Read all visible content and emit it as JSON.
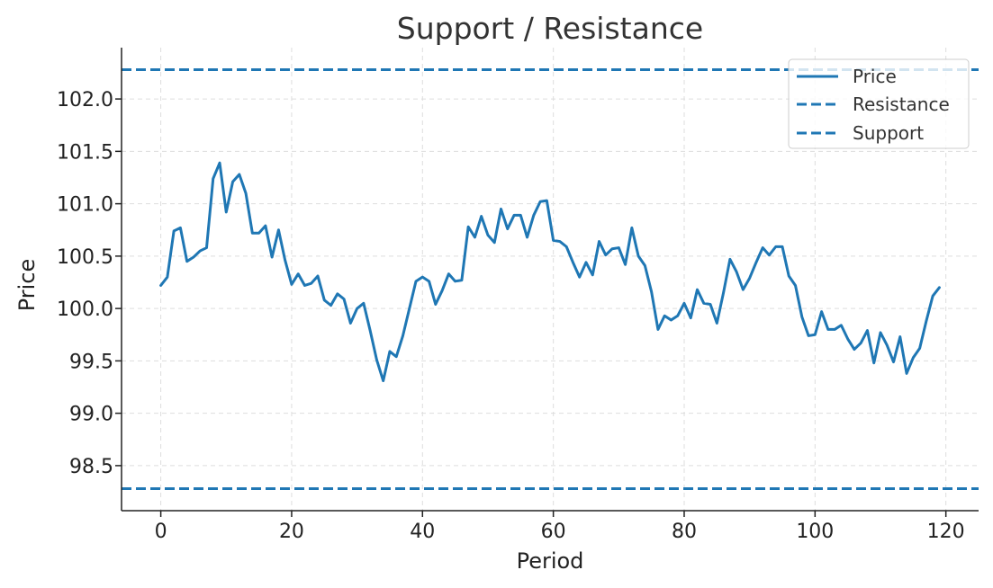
{
  "chart_data": {
    "type": "line",
    "title": "Support / Resistance",
    "xlabel": "Period",
    "ylabel": "Price",
    "xlim": [
      -6,
      125
    ],
    "ylim": [
      98.07,
      102.49
    ],
    "xticks": [
      0,
      20,
      40,
      60,
      80,
      100,
      120
    ],
    "xtick_labels": [
      "0",
      "20",
      "40",
      "60",
      "80",
      "100",
      "120"
    ],
    "yticks": [
      98.5,
      99.0,
      99.5,
      100.0,
      100.5,
      101.0,
      101.5,
      102.0
    ],
    "ytick_labels": [
      "98.5",
      "99.0",
      "99.5",
      "100.0",
      "100.5",
      "101.0",
      "101.5",
      "102.0"
    ],
    "grid": true,
    "legend_position": "top-right",
    "color": "#1f77b4",
    "series": [
      {
        "name": "Price",
        "style": "solid",
        "x": [
          0,
          1,
          2,
          3,
          4,
          5,
          6,
          7,
          8,
          9,
          10,
          11,
          12,
          13,
          14,
          15,
          16,
          17,
          18,
          19,
          20,
          21,
          22,
          23,
          24,
          25,
          26,
          27,
          28,
          29,
          30,
          31,
          32,
          33,
          34,
          35,
          36,
          37,
          38,
          39,
          40,
          41,
          42,
          43,
          44,
          45,
          46,
          47,
          48,
          49,
          50,
          51,
          52,
          53,
          54,
          55,
          56,
          57,
          58,
          59,
          60,
          61,
          62,
          63,
          64,
          65,
          66,
          67,
          68,
          69,
          70,
          71,
          72,
          73,
          74,
          75,
          76,
          77,
          78,
          79,
          80,
          81,
          82,
          83,
          84,
          85,
          86,
          87,
          88,
          89,
          90,
          91,
          92,
          93,
          94,
          95,
          96,
          97,
          98,
          99,
          100,
          101,
          102,
          103,
          104,
          105,
          106,
          107,
          108,
          109,
          110,
          111,
          112,
          113,
          114,
          115,
          116,
          117,
          118,
          119
        ],
        "values": [
          100.22,
          100.3,
          100.74,
          100.77,
          100.45,
          100.49,
          100.55,
          100.58,
          101.24,
          101.39,
          100.92,
          101.21,
          101.28,
          101.1,
          100.72,
          100.72,
          100.79,
          100.49,
          100.75,
          100.46,
          100.23,
          100.33,
          100.22,
          100.24,
          100.31,
          100.08,
          100.03,
          100.14,
          100.09,
          99.86,
          100.0,
          100.05,
          99.79,
          99.51,
          99.31,
          99.59,
          99.54,
          99.74,
          100.0,
          100.26,
          100.3,
          100.26,
          100.04,
          100.17,
          100.33,
          100.26,
          100.27,
          100.78,
          100.68,
          100.88,
          100.7,
          100.63,
          100.95,
          100.76,
          100.89,
          100.89,
          100.68,
          100.89,
          101.02,
          101.03,
          100.65,
          100.64,
          100.59,
          100.44,
          100.3,
          100.44,
          100.32,
          100.64,
          100.51,
          100.57,
          100.58,
          100.42,
          100.77,
          100.5,
          100.41,
          100.16,
          99.8,
          99.93,
          99.89,
          99.93,
          100.05,
          99.91,
          100.18,
          100.05,
          100.04,
          99.86,
          100.15,
          100.47,
          100.35,
          100.18,
          100.29,
          100.44,
          100.58,
          100.51,
          100.59,
          100.59,
          100.31,
          100.22,
          99.92,
          99.74,
          99.75,
          99.97,
          99.8,
          99.8,
          99.84,
          99.71,
          99.61,
          99.67,
          99.79,
          99.48,
          99.77,
          99.65,
          99.49,
          99.73,
          99.38,
          99.53,
          99.62,
          99.88,
          100.12,
          100.2
        ]
      },
      {
        "name": "Resistance",
        "style": "dashed",
        "value": 102.28
      },
      {
        "name": "Support",
        "style": "dashed",
        "value": 98.28
      }
    ]
  }
}
